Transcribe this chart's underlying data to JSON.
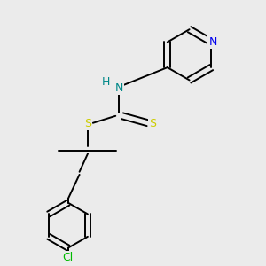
{
  "background_color": "#ebebeb",
  "atom_colors": {
    "N_pyridine": "#0000ee",
    "N_amine": "#008888",
    "S": "#cccc00",
    "Cl": "#00bb00",
    "C": "#000000",
    "H": "#008888"
  },
  "bond_color": "#000000",
  "bond_width": 1.4,
  "ring_r": 0.09,
  "benz_r": 0.08
}
